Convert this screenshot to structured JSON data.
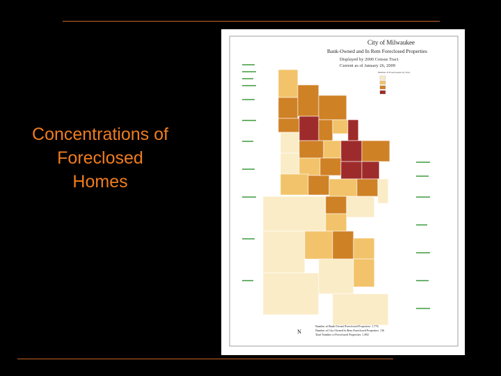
{
  "slide": {
    "title_lines": [
      "Concentrations of",
      "Foreclosed",
      "Homes"
    ]
  },
  "map": {
    "title": "City of Milwaukee",
    "subtitle": "Bank-Owned and In Rem Foreclosed Properties",
    "display": "Displayed by 2000 Census Tract",
    "date": "Current as of January 26, 2009",
    "legend_title": "Number of Foreclosures by Tract",
    "summary": [
      "Number of Bank-Owned Foreclosed Properties: 1,776",
      "Number of City-Owned In Rem Foreclosed Properties: 116",
      "Total Number of Foreclosed Properties: 1,892"
    ],
    "north": "N"
  }
}
